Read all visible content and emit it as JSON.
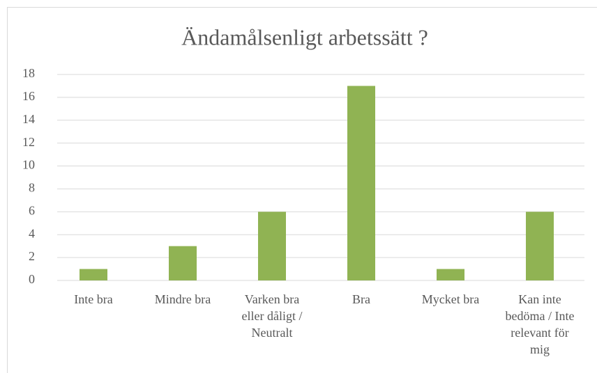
{
  "chart_data": {
    "type": "bar",
    "title": "Ändamålsenligt arbetssätt ?",
    "categories": [
      "Inte bra",
      "Mindre bra",
      "Varken bra eller dåligt / Neutralt",
      "Bra",
      "Mycket bra",
      "Kan inte bedöma / Inte relevant för mig"
    ],
    "values": [
      1,
      3,
      6,
      17,
      1,
      6
    ],
    "color": "#90b353",
    "ylim": [
      0,
      18
    ],
    "yticks": [
      0,
      2,
      4,
      6,
      8,
      10,
      12,
      14,
      16,
      18
    ],
    "grid": true
  }
}
